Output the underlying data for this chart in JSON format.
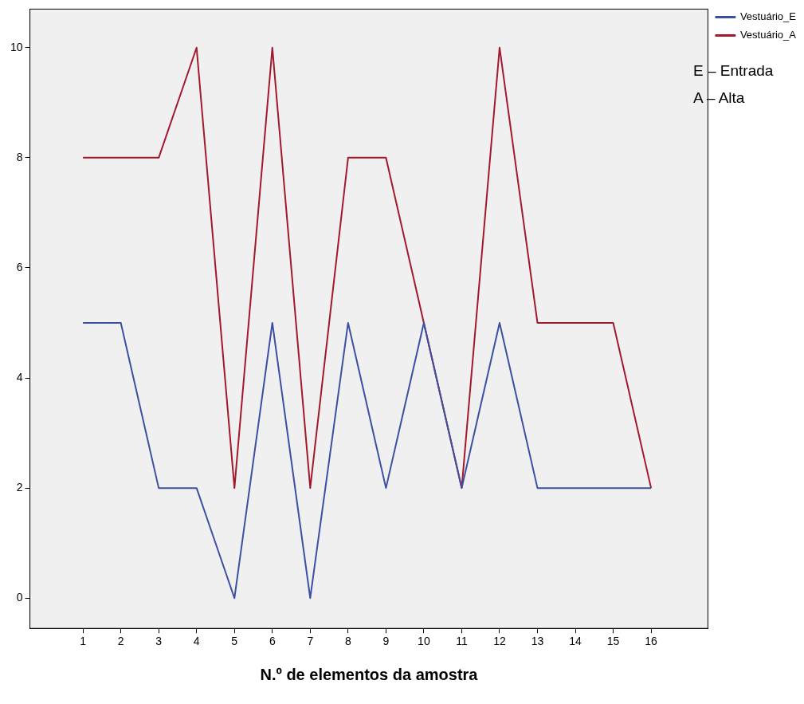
{
  "chart_data": {
    "type": "line",
    "xlabel": "N.º de elementos da amostra",
    "x": [
      1,
      2,
      3,
      4,
      5,
      6,
      7,
      8,
      9,
      10,
      11,
      12,
      13,
      14,
      15,
      16
    ],
    "series": [
      {
        "name": "Vestuário_E",
        "color": "#3b4fa3",
        "values": [
          5,
          5,
          2,
          2,
          0,
          5,
          0,
          5,
          2,
          5,
          2,
          5,
          2,
          2,
          2,
          2
        ]
      },
      {
        "name": "Vestuário_A",
        "color": "#a3192b",
        "values": [
          8,
          8,
          8,
          10,
          2,
          10,
          2,
          8,
          8,
          5,
          2,
          10,
          5,
          5,
          5,
          2
        ]
      }
    ],
    "xlim": [
      -0.4,
      17.5
    ],
    "xticks": [
      1,
      2,
      3,
      4,
      5,
      6,
      7,
      8,
      9,
      10,
      11,
      12,
      13,
      14,
      15,
      16
    ],
    "ylim": [
      -0.55,
      10.7
    ],
    "yticks": [
      0,
      2,
      4,
      6,
      8,
      10
    ],
    "legend": "top right",
    "marker": "none",
    "line_style": "solid",
    "annotations": [
      "E – Entrada",
      "A – Alta"
    ]
  }
}
